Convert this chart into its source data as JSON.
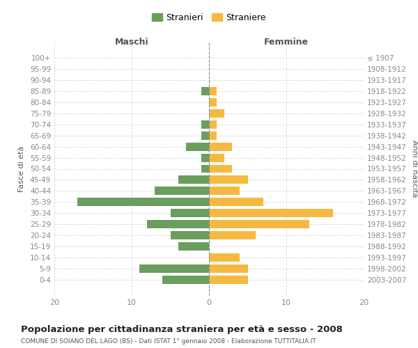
{
  "age_groups": [
    "100+",
    "95-99",
    "90-94",
    "85-89",
    "80-84",
    "75-79",
    "70-74",
    "65-69",
    "60-64",
    "55-59",
    "50-54",
    "45-49",
    "40-44",
    "35-39",
    "30-34",
    "25-29",
    "20-24",
    "15-19",
    "10-14",
    "5-9",
    "0-4"
  ],
  "birth_years": [
    "≤ 1907",
    "1908-1912",
    "1913-1917",
    "1918-1922",
    "1923-1927",
    "1928-1932",
    "1933-1937",
    "1938-1942",
    "1943-1947",
    "1948-1952",
    "1953-1957",
    "1958-1962",
    "1963-1967",
    "1968-1972",
    "1973-1977",
    "1978-1982",
    "1983-1987",
    "1988-1992",
    "1993-1997",
    "1998-2002",
    "2003-2007"
  ],
  "maschi": [
    0,
    0,
    0,
    1,
    0,
    0,
    1,
    1,
    3,
    1,
    1,
    4,
    7,
    17,
    5,
    8,
    5,
    4,
    0,
    9,
    6
  ],
  "femmine": [
    0,
    0,
    0,
    1,
    1,
    2,
    1,
    1,
    3,
    2,
    3,
    5,
    4,
    7,
    16,
    13,
    6,
    0,
    4,
    5,
    5
  ],
  "maschi_color": "#6a9e5e",
  "femmine_color": "#f5b942",
  "bg_color": "#ffffff",
  "grid_color": "#cccccc",
  "title": "Popolazione per cittadinanza straniera per età e sesso - 2008",
  "subtitle": "COMUNE DI SOIANO DEL LAGO (BS) - Dati ISTAT 1° gennaio 2008 - Elaborazione TUTTITALIA.IT",
  "ylabel_left": "Fasce di età",
  "ylabel_right": "Anni di nascita",
  "xlabel_left": "Maschi",
  "xlabel_right": "Femmine",
  "xlim": 20,
  "legend_maschi": "Stranieri",
  "legend_femmine": "Straniere"
}
